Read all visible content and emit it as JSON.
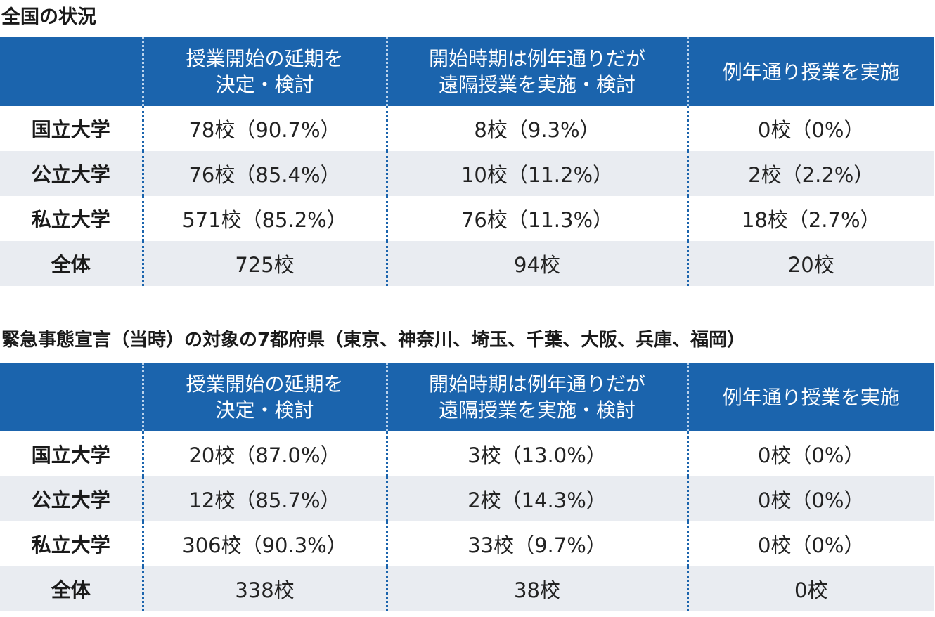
{
  "sections": [
    {
      "title": "全国の状況",
      "headers": [
        "",
        "授業開始の延期を\n決定・検討",
        "開始時期は例年通りだが\n遠隔授業を実施・検討",
        "例年通り授業を実施"
      ],
      "rows": [
        {
          "label": "国立大学",
          "cells": [
            "78校（90.7%）",
            "8校（9.3%）",
            "0校（0%）"
          ]
        },
        {
          "label": "公立大学",
          "cells": [
            "76校（85.4%）",
            "10校（11.2%）",
            "2校（2.2%）"
          ]
        },
        {
          "label": "私立大学",
          "cells": [
            "571校（85.2%）",
            "76校（11.3%）",
            "18校（2.7%）"
          ]
        },
        {
          "label": "全体",
          "cells": [
            "725校",
            "94校",
            "20校"
          ]
        }
      ]
    },
    {
      "title": "緊急事態宣言（当時）の対象の7都府県（東京、神奈川、埼玉、千葉、大阪、兵庫、福岡）",
      "headers": [
        "",
        "授業開始の延期を\n決定・検討",
        "開始時期は例年通りだが\n遠隔授業を実施・検討",
        "例年通り授業を実施"
      ],
      "rows": [
        {
          "label": "国立大学",
          "cells": [
            "20校（87.0%）",
            "3校（13.0%）",
            "0校（0%）"
          ]
        },
        {
          "label": "公立大学",
          "cells": [
            "12校（85.7%）",
            "2校（14.3%）",
            "0校（0%）"
          ]
        },
        {
          "label": "私立大学",
          "cells": [
            "306校（90.3%）",
            "33校（9.7%）",
            "0校（0%）"
          ]
        },
        {
          "label": "全体",
          "cells": [
            "338校",
            "38校",
            "0校"
          ]
        }
      ]
    }
  ],
  "colors": {
    "header_background": "#1b64ad",
    "header_text": "#ffffff",
    "alternate_row_background": "#e9ecf1",
    "separator": "#1b64ad"
  }
}
